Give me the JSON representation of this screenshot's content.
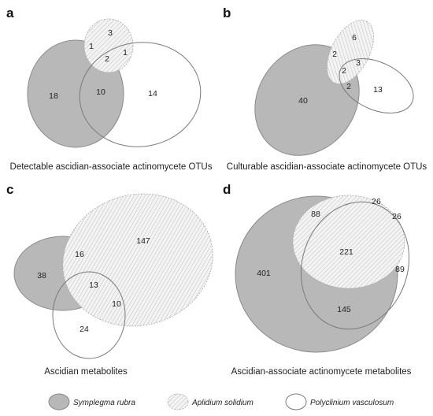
{
  "panels": {
    "a": {
      "letter": "a",
      "caption": "Detectable ascidian-associate actinomycete OTUs",
      "counts": {
        "s_only": "18",
        "s_p": "10",
        "p_only": "14",
        "a_only": "3",
        "s_a": "1",
        "a_p": "1",
        "all": "2"
      }
    },
    "b": {
      "letter": "b",
      "caption": "Culturable ascidian-associate actinomycete OTUs",
      "counts": {
        "s_only": "40",
        "a_only": "6",
        "s_a": "2",
        "a_p": "3",
        "all": "2",
        "s_p": "2",
        "p_only": "13"
      }
    },
    "c": {
      "letter": "c",
      "caption": "Ascidian metabolites",
      "counts": {
        "s_only": "38",
        "s_a": "16",
        "a_only": "147",
        "all": "13",
        "a_p": "10",
        "p_only": "24"
      }
    },
    "d": {
      "letter": "d",
      "caption": "Ascidian-associate actinomycete metabolites",
      "counts": {
        "s_only": "401",
        "s_a": "88",
        "a_only": "26",
        "a_p": "26",
        "all": "221",
        "p_only": "89",
        "s_p": "145"
      }
    }
  },
  "legend": {
    "symplegma": "Symplegma rubra",
    "aplidium": "Aplidium solidium",
    "polyclinium": "Polyclinium vasculosum"
  },
  "colors": {
    "symplegma_fill": "#b8b8b8",
    "outline": "#7a7a7a",
    "hatch": "#c4c4c4"
  }
}
